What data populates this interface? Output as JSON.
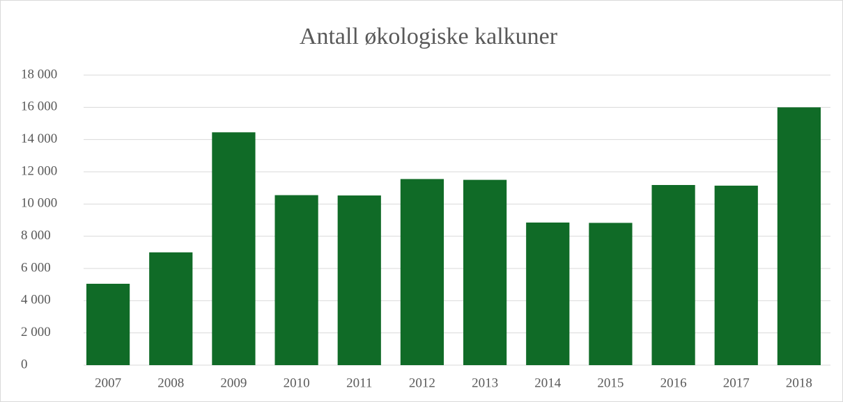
{
  "chart_data": {
    "type": "bar",
    "title": "Antall økologiske kalkuner",
    "categories": [
      "2007",
      "2008",
      "2009",
      "2010",
      "2011",
      "2012",
      "2013",
      "2014",
      "2015",
      "2016",
      "2017",
      "2018"
    ],
    "values": [
      5050,
      7000,
      14450,
      10550,
      10530,
      11550,
      11500,
      8850,
      8830,
      11180,
      11140,
      16000
    ],
    "color": "#106b27",
    "ylim": [
      0,
      18000
    ],
    "yticks": [
      0,
      {
        "value": 2000,
        "label": "2 000"
      },
      {
        "value": 4000,
        "label": "4 000"
      },
      {
        "value": 6000,
        "label": "6 000"
      },
      {
        "value": 8000,
        "label": "8 000"
      },
      {
        "value": 10000,
        "label": "10 000"
      },
      {
        "value": 12000,
        "label": "12 000"
      },
      {
        "value": 14000,
        "label": "14 000"
      },
      {
        "value": 16000,
        "label": "16 000"
      },
      {
        "value": 18000,
        "label": "18 000"
      }
    ],
    "grid": true
  }
}
